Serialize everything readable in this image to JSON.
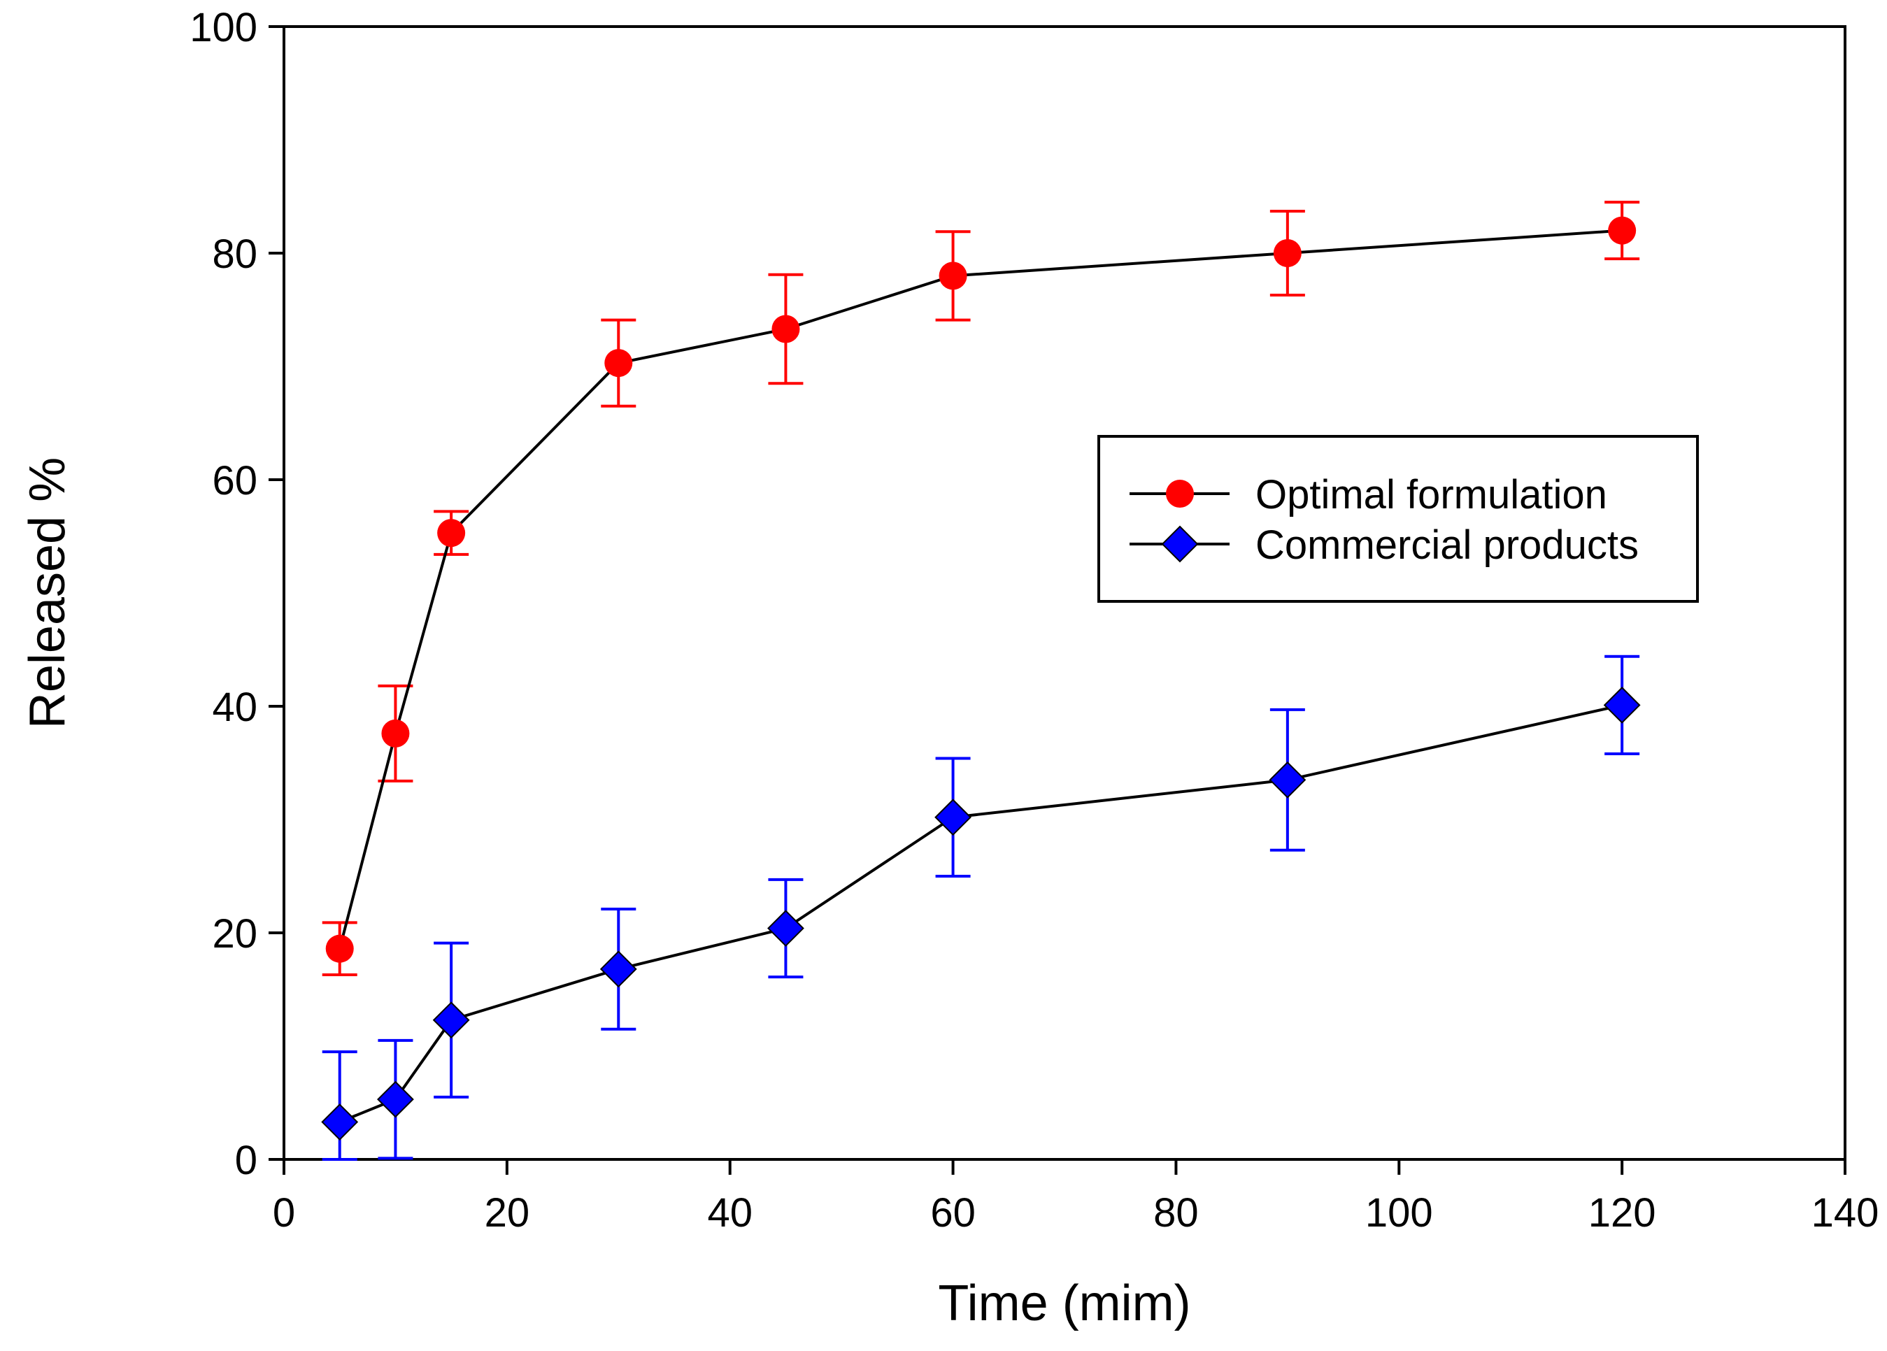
{
  "chart_data": {
    "type": "line",
    "title": "",
    "xlabel": "Time (mim)",
    "ylabel": "Released %",
    "xlim": [
      0,
      140
    ],
    "ylim": [
      0,
      100
    ],
    "xticks": [
      0,
      20,
      40,
      60,
      80,
      100,
      120,
      140
    ],
    "yticks": [
      0,
      20,
      40,
      60,
      80,
      100
    ],
    "grid": false,
    "legend_position": "center-right",
    "series": [
      {
        "name": "Optimal formulation",
        "marker": "circle",
        "marker_color": "#ff0000",
        "error_color": "#ff0000",
        "line_color": "#000000",
        "x": [
          5,
          10,
          15,
          30,
          45,
          60,
          90,
          120
        ],
        "y": [
          18.6,
          37.6,
          55.3,
          70.3,
          73.3,
          78.0,
          80.0,
          82.0
        ],
        "error": [
          2.3,
          4.2,
          1.9,
          3.8,
          4.8,
          3.9,
          3.7,
          2.5
        ]
      },
      {
        "name": "Commercial products",
        "marker": "diamond",
        "marker_color": "#0000ff",
        "error_color": "#0000ff",
        "line_color": "#000000",
        "x": [
          5,
          10,
          15,
          30,
          45,
          60,
          90,
          120
        ],
        "y": [
          3.3,
          5.3,
          12.3,
          16.8,
          20.4,
          30.2,
          33.5,
          40.1
        ],
        "error": [
          6.2,
          5.2,
          6.8,
          5.3,
          4.3,
          5.2,
          6.2,
          4.3
        ]
      }
    ]
  }
}
